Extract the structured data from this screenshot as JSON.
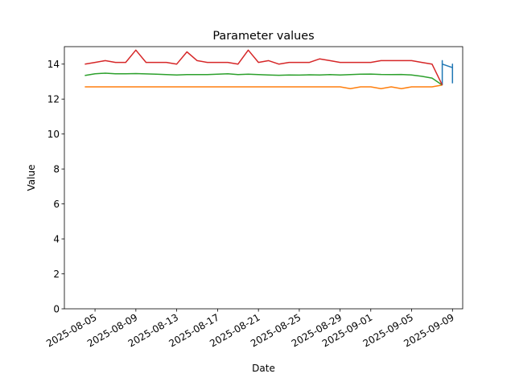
{
  "chart_data": {
    "type": "line",
    "title": "Parameter values",
    "xlabel": "Date",
    "ylabel": "Value",
    "ylim": [
      0,
      15
    ],
    "xlim": [
      "2025-08-02",
      "2025-09-10"
    ],
    "grid": false,
    "legend": "none",
    "x_ticks": [
      "2025-08-05",
      "2025-08-09",
      "2025-08-13",
      "2025-08-17",
      "2025-08-21",
      "2025-08-25",
      "2025-08-29",
      "2025-09-01",
      "2025-09-05",
      "2025-09-09"
    ],
    "y_ticks": [
      0,
      2,
      4,
      6,
      8,
      10,
      12,
      14
    ],
    "series": [
      {
        "color": "#1f77b4",
        "points": [
          [
            "2025-09-08",
            12.8
          ],
          [
            "2025-09-08",
            14.2
          ],
          [
            "2025-09-08",
            14.0
          ],
          [
            "2025-09-09",
            13.8
          ],
          [
            "2025-09-09",
            14.0
          ],
          [
            "2025-09-09",
            12.9
          ]
        ]
      },
      {
        "color": "#ff7f0e",
        "points": [
          [
            "2025-08-04",
            12.7
          ],
          [
            "2025-08-05",
            12.7
          ],
          [
            "2025-08-06",
            12.7
          ],
          [
            "2025-08-07",
            12.7
          ],
          [
            "2025-08-08",
            12.7
          ],
          [
            "2025-08-09",
            12.7
          ],
          [
            "2025-08-10",
            12.7
          ],
          [
            "2025-08-11",
            12.7
          ],
          [
            "2025-08-12",
            12.7
          ],
          [
            "2025-08-13",
            12.7
          ],
          [
            "2025-08-14",
            12.7
          ],
          [
            "2025-08-15",
            12.7
          ],
          [
            "2025-08-16",
            12.7
          ],
          [
            "2025-08-17",
            12.7
          ],
          [
            "2025-08-18",
            12.7
          ],
          [
            "2025-08-19",
            12.7
          ],
          [
            "2025-08-20",
            12.7
          ],
          [
            "2025-08-21",
            12.7
          ],
          [
            "2025-08-22",
            12.7
          ],
          [
            "2025-08-23",
            12.7
          ],
          [
            "2025-08-24",
            12.7
          ],
          [
            "2025-08-25",
            12.7
          ],
          [
            "2025-08-26",
            12.7
          ],
          [
            "2025-08-27",
            12.7
          ],
          [
            "2025-08-28",
            12.7
          ],
          [
            "2025-08-29",
            12.7
          ],
          [
            "2025-08-30",
            12.6
          ],
          [
            "2025-08-31",
            12.7
          ],
          [
            "2025-09-01",
            12.7
          ],
          [
            "2025-09-02",
            12.6
          ],
          [
            "2025-09-03",
            12.7
          ],
          [
            "2025-09-04",
            12.6
          ],
          [
            "2025-09-05",
            12.7
          ],
          [
            "2025-09-06",
            12.7
          ],
          [
            "2025-09-07",
            12.7
          ],
          [
            "2025-09-08",
            12.8
          ]
        ]
      },
      {
        "color": "#2ca02c",
        "points": [
          [
            "2025-08-04",
            13.35
          ],
          [
            "2025-08-05",
            13.45
          ],
          [
            "2025-08-06",
            13.48
          ],
          [
            "2025-08-07",
            13.45
          ],
          [
            "2025-08-08",
            13.45
          ],
          [
            "2025-08-09",
            13.46
          ],
          [
            "2025-08-10",
            13.44
          ],
          [
            "2025-08-11",
            13.42
          ],
          [
            "2025-08-12",
            13.4
          ],
          [
            "2025-08-13",
            13.38
          ],
          [
            "2025-08-14",
            13.4
          ],
          [
            "2025-08-15",
            13.4
          ],
          [
            "2025-08-16",
            13.4
          ],
          [
            "2025-08-17",
            13.42
          ],
          [
            "2025-08-18",
            13.45
          ],
          [
            "2025-08-19",
            13.4
          ],
          [
            "2025-08-20",
            13.42
          ],
          [
            "2025-08-21",
            13.4
          ],
          [
            "2025-08-22",
            13.38
          ],
          [
            "2025-08-23",
            13.36
          ],
          [
            "2025-08-24",
            13.38
          ],
          [
            "2025-08-25",
            13.37
          ],
          [
            "2025-08-26",
            13.39
          ],
          [
            "2025-08-27",
            13.38
          ],
          [
            "2025-08-28",
            13.4
          ],
          [
            "2025-08-29",
            13.38
          ],
          [
            "2025-08-30",
            13.4
          ],
          [
            "2025-08-31",
            13.42
          ],
          [
            "2025-09-01",
            13.43
          ],
          [
            "2025-09-02",
            13.41
          ],
          [
            "2025-09-03",
            13.4
          ],
          [
            "2025-09-04",
            13.41
          ],
          [
            "2025-09-05",
            13.38
          ],
          [
            "2025-09-06",
            13.3
          ],
          [
            "2025-09-07",
            13.2
          ],
          [
            "2025-09-08",
            12.8
          ]
        ]
      },
      {
        "color": "#d62728",
        "points": [
          [
            "2025-08-04",
            14.0
          ],
          [
            "2025-08-05",
            14.1
          ],
          [
            "2025-08-06",
            14.2
          ],
          [
            "2025-08-07",
            14.1
          ],
          [
            "2025-08-08",
            14.1
          ],
          [
            "2025-08-09",
            14.8
          ],
          [
            "2025-08-10",
            14.1
          ],
          [
            "2025-08-11",
            14.1
          ],
          [
            "2025-08-12",
            14.1
          ],
          [
            "2025-08-13",
            14.0
          ],
          [
            "2025-08-14",
            14.7
          ],
          [
            "2025-08-15",
            14.2
          ],
          [
            "2025-08-16",
            14.1
          ],
          [
            "2025-08-17",
            14.1
          ],
          [
            "2025-08-18",
            14.1
          ],
          [
            "2025-08-19",
            14.0
          ],
          [
            "2025-08-20",
            14.8
          ],
          [
            "2025-08-21",
            14.1
          ],
          [
            "2025-08-22",
            14.2
          ],
          [
            "2025-08-23",
            14.0
          ],
          [
            "2025-08-24",
            14.1
          ],
          [
            "2025-08-25",
            14.1
          ],
          [
            "2025-08-26",
            14.1
          ],
          [
            "2025-08-27",
            14.3
          ],
          [
            "2025-08-28",
            14.2
          ],
          [
            "2025-08-29",
            14.1
          ],
          [
            "2025-08-30",
            14.1
          ],
          [
            "2025-08-31",
            14.1
          ],
          [
            "2025-09-01",
            14.1
          ],
          [
            "2025-09-02",
            14.2
          ],
          [
            "2025-09-03",
            14.2
          ],
          [
            "2025-09-04",
            14.2
          ],
          [
            "2025-09-05",
            14.2
          ],
          [
            "2025-09-06",
            14.1
          ],
          [
            "2025-09-07",
            14.0
          ],
          [
            "2025-09-08",
            12.8
          ]
        ]
      }
    ]
  }
}
